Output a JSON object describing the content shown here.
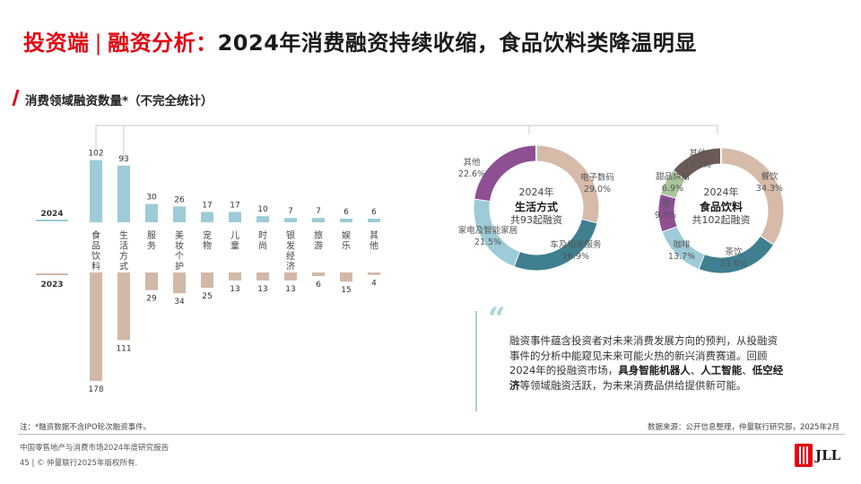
{
  "header": {
    "title_part1": "投资端",
    "title_sep": "|",
    "title_part2": "融资分析：",
    "title_part3": "2024年消费融资持续收缩，食品饮料类降温明显"
  },
  "subtitle": "消费领域融资数量*（不完全统计）",
  "colors": {
    "accent_red": "#e30613",
    "bar_2024": "#9dcbd7",
    "bar_2023": "#d2b8a7",
    "seg_teal": "#3f7f8f",
    "seg_lightblue": "#9dcbd7",
    "seg_purple": "#8f4f93",
    "seg_beige": "#d6bba9",
    "seg_brown": "#6b5a55",
    "seg_green": "#a9c79a"
  },
  "chart_data": [
    {
      "type": "bar",
      "title": "消费领域融资数量*（不完全统计）",
      "categories": [
        "食品饮料",
        "生活方式",
        "服务",
        "美妆个护",
        "宠物",
        "儿童",
        "时尚",
        "银发经济",
        "旅游",
        "娱乐",
        "其他"
      ],
      "series": [
        {
          "name": "2024",
          "values": [
            102,
            93,
            30,
            26,
            17,
            17,
            10,
            7,
            7,
            6,
            6
          ]
        },
        {
          "name": "2023",
          "values": [
            178,
            111,
            29,
            34,
            25,
            13,
            13,
            13,
            6,
            15,
            4
          ]
        }
      ],
      "ylim": [
        0,
        180
      ]
    },
    {
      "type": "pie",
      "title": "生活方式",
      "center_year": "2024年",
      "center_total": "共93起融资",
      "slices": [
        {
          "name": "电子数码",
          "value": 29.0,
          "pct_label": "29.0%",
          "color": "#d6bba9"
        },
        {
          "name": "车及相关服务",
          "value": 26.9,
          "pct_label": "26.9%",
          "color": "#3f7f8f"
        },
        {
          "name": "家电及智能家居",
          "value": 21.5,
          "pct_label": "21.5%",
          "color": "#9dcbd7"
        },
        {
          "name": "其他",
          "value": 22.6,
          "pct_label": "22.6%",
          "color": "#8f4f93"
        }
      ]
    },
    {
      "type": "pie",
      "title": "食品饮料",
      "center_year": "2024年",
      "center_total": "共102起融资",
      "slices": [
        {
          "name": "餐饮",
          "value": 34.3,
          "pct_label": "34.3%",
          "color": "#d6bba9"
        },
        {
          "name": "茶饮",
          "value": 21.6,
          "pct_label": "21.6%",
          "color": "#3f7f8f"
        },
        {
          "name": "咖啡",
          "value": 13.7,
          "pct_label": "13.7%",
          "color": "#9dcbd7"
        },
        {
          "name": "酒",
          "value": 9.8,
          "pct_label": "9.8%",
          "color": "#8f4f93"
        },
        {
          "name": "甜品烘焙",
          "value": 6.9,
          "pct_label": "6.9%",
          "color": "#a9c79a"
        },
        {
          "name": "其他",
          "value": 13.7,
          "pct_label": "13.7%",
          "color": "#6b5a55"
        }
      ]
    }
  ],
  "quote": {
    "mark": "“",
    "text1": "融资事件蕴含投资者对未来消费发展方向的预判，从投融资事件的分析中能窥见未来可能火热的新兴消费赛道。回顾2024年的投融资市场，",
    "bold1": "具身智能机器人",
    "text2": "、",
    "bold2": "人工智能",
    "text3": "、",
    "bold3": "低空经济",
    "text4": "等领域融资活跃，为未来消费品供给提供新可能。"
  },
  "footer": {
    "note": "注：*融资数据不含IPO轮次融资事件。",
    "source": "数据来源：公开信息整理，仲量联行研究部，2025年2月",
    "report": "中国零售地产与消费市场2024年度研究报告",
    "page": "45",
    "copyright": "© 仲量联行2025年版权所有.",
    "logo_text": "JLL"
  }
}
